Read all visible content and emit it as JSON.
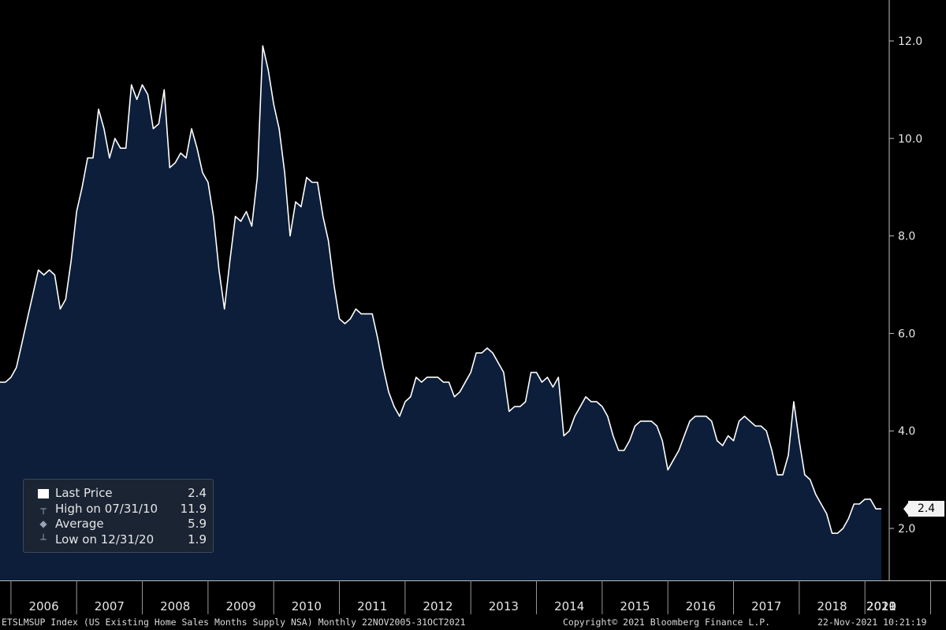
{
  "chart_data": {
    "type": "area",
    "title": "",
    "ylim": [
      0.9,
      13.0
    ],
    "yticks": [
      "12.0",
      "10.0",
      "8.0",
      "6.0",
      "4.0",
      "2.0"
    ],
    "x_start": "2005-11",
    "x_end": "2021-10",
    "year_labels": [
      "2006",
      "2007",
      "2008",
      "2009",
      "2010",
      "2011",
      "2012",
      "2013",
      "2014",
      "2015",
      "2016",
      "2017",
      "2018",
      "2019",
      "2020",
      "2021"
    ],
    "series": [
      {
        "values": [
          5.0,
          5.0,
          5.1,
          5.3,
          5.8,
          6.3,
          6.8,
          7.3,
          7.2,
          7.3,
          7.2,
          6.5,
          6.7,
          7.5,
          8.5,
          9.0,
          9.6,
          9.6,
          10.6,
          10.2,
          9.6,
          10.0,
          9.8,
          9.8,
          11.1,
          10.8,
          11.1,
          10.9,
          10.2,
          10.3,
          11.0,
          9.4,
          9.5,
          9.7,
          9.6,
          10.2,
          9.8,
          9.3,
          9.1,
          8.4,
          7.3,
          6.5,
          7.5,
          8.4,
          8.3,
          8.5,
          8.2,
          9.2,
          11.9,
          11.4,
          10.7,
          10.2,
          9.3,
          8.0,
          8.7,
          8.6,
          9.2,
          9.1,
          9.1,
          8.4,
          7.9,
          7.0,
          6.3,
          6.2,
          6.3,
          6.5,
          6.4,
          6.4,
          6.4,
          5.9,
          5.3,
          4.8,
          4.5,
          4.3,
          4.6,
          4.7,
          5.1,
          5.0,
          5.1,
          5.1,
          5.1,
          5.0,
          5.0,
          4.7,
          4.8,
          5.0,
          5.2,
          5.6,
          5.6,
          5.7,
          5.6,
          5.4,
          5.2,
          4.4,
          4.5,
          4.5,
          4.6,
          5.2,
          5.2,
          5.0,
          5.1,
          4.9,
          5.1,
          3.9,
          4.0,
          4.3,
          4.5,
          4.7,
          4.6,
          4.6,
          4.5,
          4.3,
          3.9,
          3.6,
          3.6,
          3.8,
          4.1,
          4.2,
          4.2,
          4.2,
          4.1,
          3.8,
          3.2,
          3.4,
          3.6,
          3.9,
          4.2,
          4.3,
          4.3,
          4.3,
          4.2,
          3.8,
          3.7,
          3.9,
          3.8,
          4.2,
          4.3,
          4.2,
          4.1,
          4.1,
          4.0,
          3.6,
          3.1,
          3.1,
          3.5,
          4.6,
          3.8,
          3.1,
          3.0,
          2.7,
          2.5,
          2.3,
          1.9,
          1.9,
          2.0,
          2.2,
          2.5,
          2.5,
          2.6,
          2.6,
          2.4,
          2.4
        ]
      }
    ],
    "last_value": "2.4",
    "fill_color": "#0c1e3a",
    "line_color": "#ffffff",
    "background": "#000000",
    "grid": false,
    "legend_position": "bottom-left"
  },
  "legend": {
    "rows": [
      {
        "label": "Last Price",
        "value": "2.4",
        "marker": "square-swatch"
      },
      {
        "label": "High on 07/31/10",
        "value": "11.9",
        "marker": "high-pin-icon"
      },
      {
        "label": "Average",
        "value": "5.9",
        "marker": "average-diamond-icon"
      },
      {
        "label": "Low on 12/31/20",
        "value": "1.9",
        "marker": "low-pin-icon"
      }
    ]
  },
  "footer": {
    "left": "ETSLMSUP Index (US Existing Home Sales Months Supply NSA)  Monthly 22NOV2005-31OCT2021",
    "center": "Copyright© 2021 Bloomberg Finance L.P.",
    "right": "22-Nov-2021 10:21:19"
  }
}
